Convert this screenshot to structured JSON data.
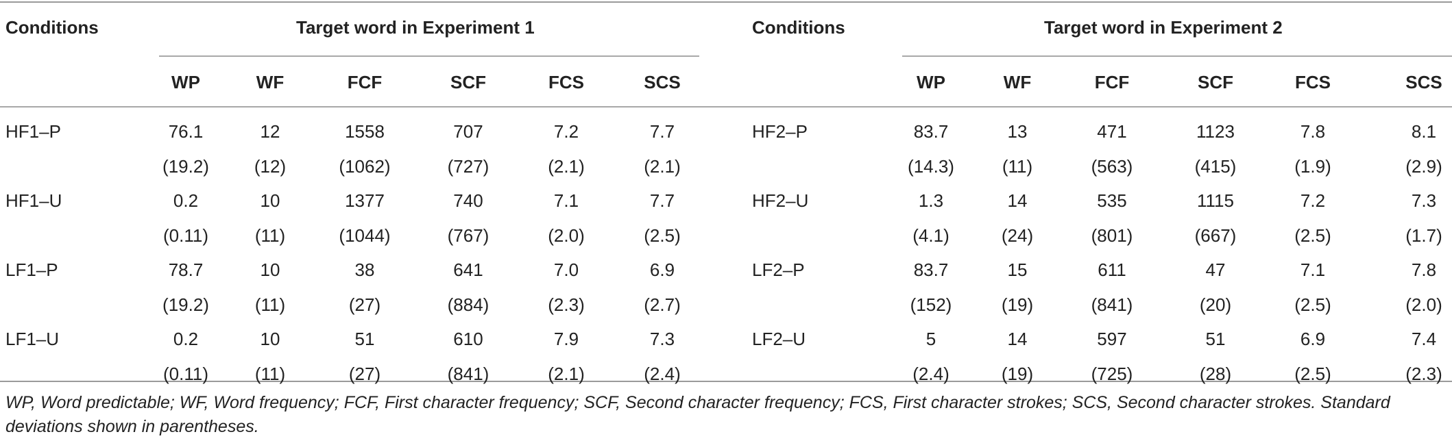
{
  "table": {
    "conditions_label": "Conditions",
    "exp1_title": "Target word in Experiment 1",
    "exp2_title": "Target word in Experiment 2",
    "columns": [
      "WP",
      "WF",
      "FCF",
      "SCF",
      "FCS",
      "SCS"
    ],
    "exp1_rows": [
      {
        "label": "HF1–P",
        "means": [
          "76.1",
          "12",
          "1558",
          "707",
          "7.2",
          "7.7"
        ],
        "sds": [
          "(19.2)",
          "(12)",
          "(1062)",
          "(727)",
          "(2.1)",
          "(2.1)"
        ]
      },
      {
        "label": "HF1–U",
        "means": [
          "0.2",
          "10",
          "1377",
          "740",
          "7.1",
          "7.7"
        ],
        "sds": [
          "(0.11)",
          "(11)",
          "(1044)",
          "(767)",
          "(2.0)",
          "(2.5)"
        ]
      },
      {
        "label": "LF1–P",
        "means": [
          "78.7",
          "10",
          "38",
          "641",
          "7.0",
          "6.9"
        ],
        "sds": [
          "(19.2)",
          "(11)",
          "(27)",
          "(884)",
          "(2.3)",
          "(2.7)"
        ]
      },
      {
        "label": "LF1–U",
        "means": [
          "0.2",
          "10",
          "51",
          "610",
          "7.9",
          "7.3"
        ],
        "sds": [
          "(0.11)",
          "(11)",
          "(27)",
          "(841)",
          "(2.1)",
          "(2.4)"
        ]
      }
    ],
    "exp2_rows": [
      {
        "label": "HF2–P",
        "means": [
          "83.7",
          "13",
          "471",
          "1123",
          "7.8",
          "8.1"
        ],
        "sds": [
          "(14.3)",
          "(11)",
          "(563)",
          "(415)",
          "(1.9)",
          "(2.9)"
        ]
      },
      {
        "label": "HF2–U",
        "means": [
          "1.3",
          "14",
          "535",
          "1115",
          "7.2",
          "7.3"
        ],
        "sds": [
          "(4.1)",
          "(24)",
          "(801)",
          "(667)",
          "(2.5)",
          "(1.7)"
        ]
      },
      {
        "label": "LF2–P",
        "means": [
          "83.7",
          "15",
          "611",
          "47",
          "7.1",
          "7.8"
        ],
        "sds": [
          "(152)",
          "(19)",
          "(841)",
          "(20)",
          "(2.5)",
          "(2.0)"
        ]
      },
      {
        "label": "LF2–U",
        "means": [
          "5",
          "14",
          "597",
          "51",
          "6.9",
          "7.4"
        ],
        "sds": [
          "(2.4)",
          "(19)",
          "(725)",
          "(28)",
          "(2.5)",
          "(2.3)"
        ]
      }
    ]
  },
  "footnote": "WP, Word predictable; WF, Word frequency; FCF, First character frequency; SCF, Second character frequency; FCS, First character strokes; SCS, Second character strokes. Standard deviations shown in parentheses."
}
